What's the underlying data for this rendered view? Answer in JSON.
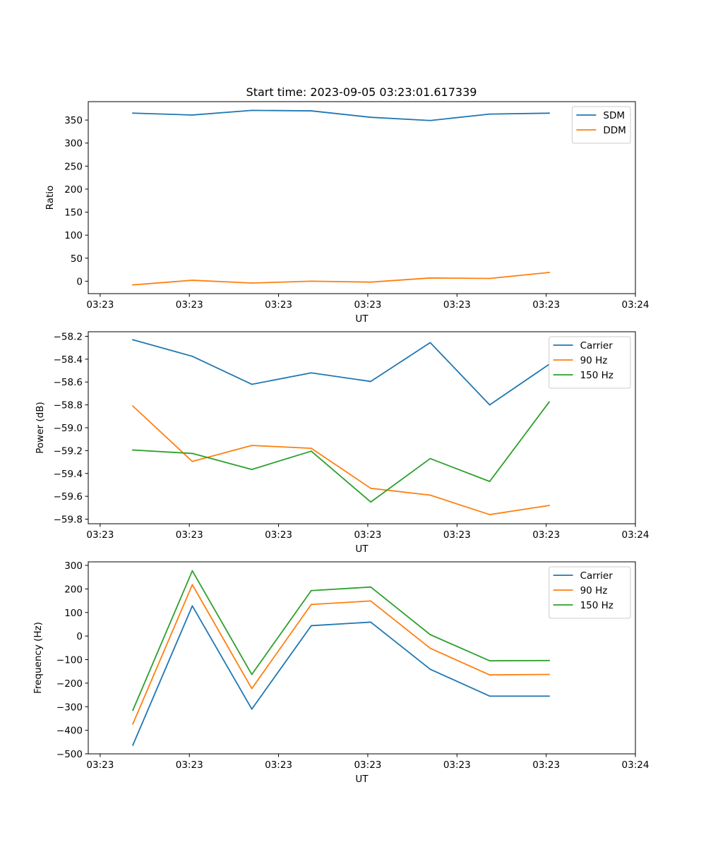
{
  "figure_title": "Start time: 2023-09-05 03:23:01.617339",
  "chart_data": [
    {
      "type": "line",
      "title": "Start time: 2023-09-05 03:23:01.617339",
      "xlabel": "UT",
      "ylabel": "Ratio",
      "x": [
        1,
        2,
        3,
        4,
        5,
        6,
        7,
        8
      ],
      "xlim": [
        0.25,
        9.45
      ],
      "xticks": [
        0.45,
        1.95,
        3.45,
        4.95,
        6.45,
        7.95,
        9.45
      ],
      "xtick_labels": [
        "03:23",
        "03:23",
        "03:23",
        "03:23",
        "03:23",
        "03:23",
        "03:24"
      ],
      "ylim": [
        -27,
        390
      ],
      "yticks": [
        0,
        50,
        100,
        150,
        200,
        250,
        300,
        350
      ],
      "ytick_labels": [
        "0",
        "50",
        "100",
        "150",
        "200",
        "250",
        "300",
        "350"
      ],
      "legend_position": "upper right",
      "series": [
        {
          "name": "SDM",
          "color": "#1f77b4",
          "values": [
            365,
            361,
            371,
            370,
            356,
            349,
            363,
            365
          ]
        },
        {
          "name": "DDM",
          "color": "#ff7f0e",
          "values": [
            -8,
            2,
            -4,
            0,
            -2,
            7,
            6,
            19
          ]
        }
      ]
    },
    {
      "type": "line",
      "title": "",
      "xlabel": "UT",
      "ylabel": "Power (dB)",
      "x": [
        1,
        2,
        3,
        4,
        5,
        6,
        7,
        8
      ],
      "xlim": [
        0.25,
        9.45
      ],
      "xticks": [
        0.45,
        1.95,
        3.45,
        4.95,
        6.45,
        7.95,
        9.45
      ],
      "xtick_labels": [
        "03:23",
        "03:23",
        "03:23",
        "03:23",
        "03:23",
        "03:23",
        "03:24"
      ],
      "ylim": [
        -59.84,
        -58.16
      ],
      "yticks": [
        -59.8,
        -59.6,
        -59.4,
        -59.2,
        -59.0,
        -58.8,
        -58.6,
        -58.4,
        -58.2
      ],
      "ytick_labels": [
        "−59.8",
        "−59.6",
        "−59.4",
        "−59.2",
        "−59.0",
        "−58.8",
        "−58.6",
        "−58.4",
        "−58.2"
      ],
      "legend_position": "upper right",
      "series": [
        {
          "name": "Carrier",
          "color": "#1f77b4",
          "values": [
            -58.23,
            -58.375,
            -58.62,
            -58.52,
            -58.595,
            -58.255,
            -58.8,
            -58.445
          ]
        },
        {
          "name": "90 Hz",
          "color": "#ff7f0e",
          "values": [
            -58.81,
            -59.295,
            -59.155,
            -59.18,
            -59.53,
            -59.59,
            -59.76,
            -59.68
          ]
        },
        {
          "name": "150 Hz",
          "color": "#2ca02c",
          "values": [
            -59.195,
            -59.225,
            -59.365,
            -59.205,
            -59.65,
            -59.27,
            -59.47,
            -58.775
          ]
        }
      ]
    },
    {
      "type": "line",
      "title": "",
      "xlabel": "UT",
      "ylabel": "Frequency (Hz)",
      "x": [
        1,
        2,
        3,
        4,
        5,
        6,
        7,
        8
      ],
      "xlim": [
        0.25,
        9.45
      ],
      "xticks": [
        0.45,
        1.95,
        3.45,
        4.95,
        6.45,
        7.95,
        9.45
      ],
      "xtick_labels": [
        "03:23",
        "03:23",
        "03:23",
        "03:23",
        "03:23",
        "03:23",
        "03:24"
      ],
      "ylim": [
        -500,
        315
      ],
      "yticks": [
        -500,
        -400,
        -300,
        -200,
        -100,
        0,
        100,
        200,
        300
      ],
      "ytick_labels": [
        "−500",
        "−400",
        "−300",
        "−200",
        "−100",
        "0",
        "100",
        "200",
        "300"
      ],
      "legend_position": "upper right",
      "series": [
        {
          "name": "Carrier",
          "color": "#1f77b4",
          "values": [
            -463,
            128,
            -310,
            44,
            59,
            -141,
            -255,
            -255
          ]
        },
        {
          "name": "90 Hz",
          "color": "#ff7f0e",
          "values": [
            -373,
            218,
            -223,
            134,
            149,
            -52,
            -165,
            -163
          ]
        },
        {
          "name": "150 Hz",
          "color": "#2ca02c",
          "values": [
            -315,
            277,
            -163,
            193,
            208,
            6,
            -105,
            -104
          ]
        }
      ]
    }
  ]
}
